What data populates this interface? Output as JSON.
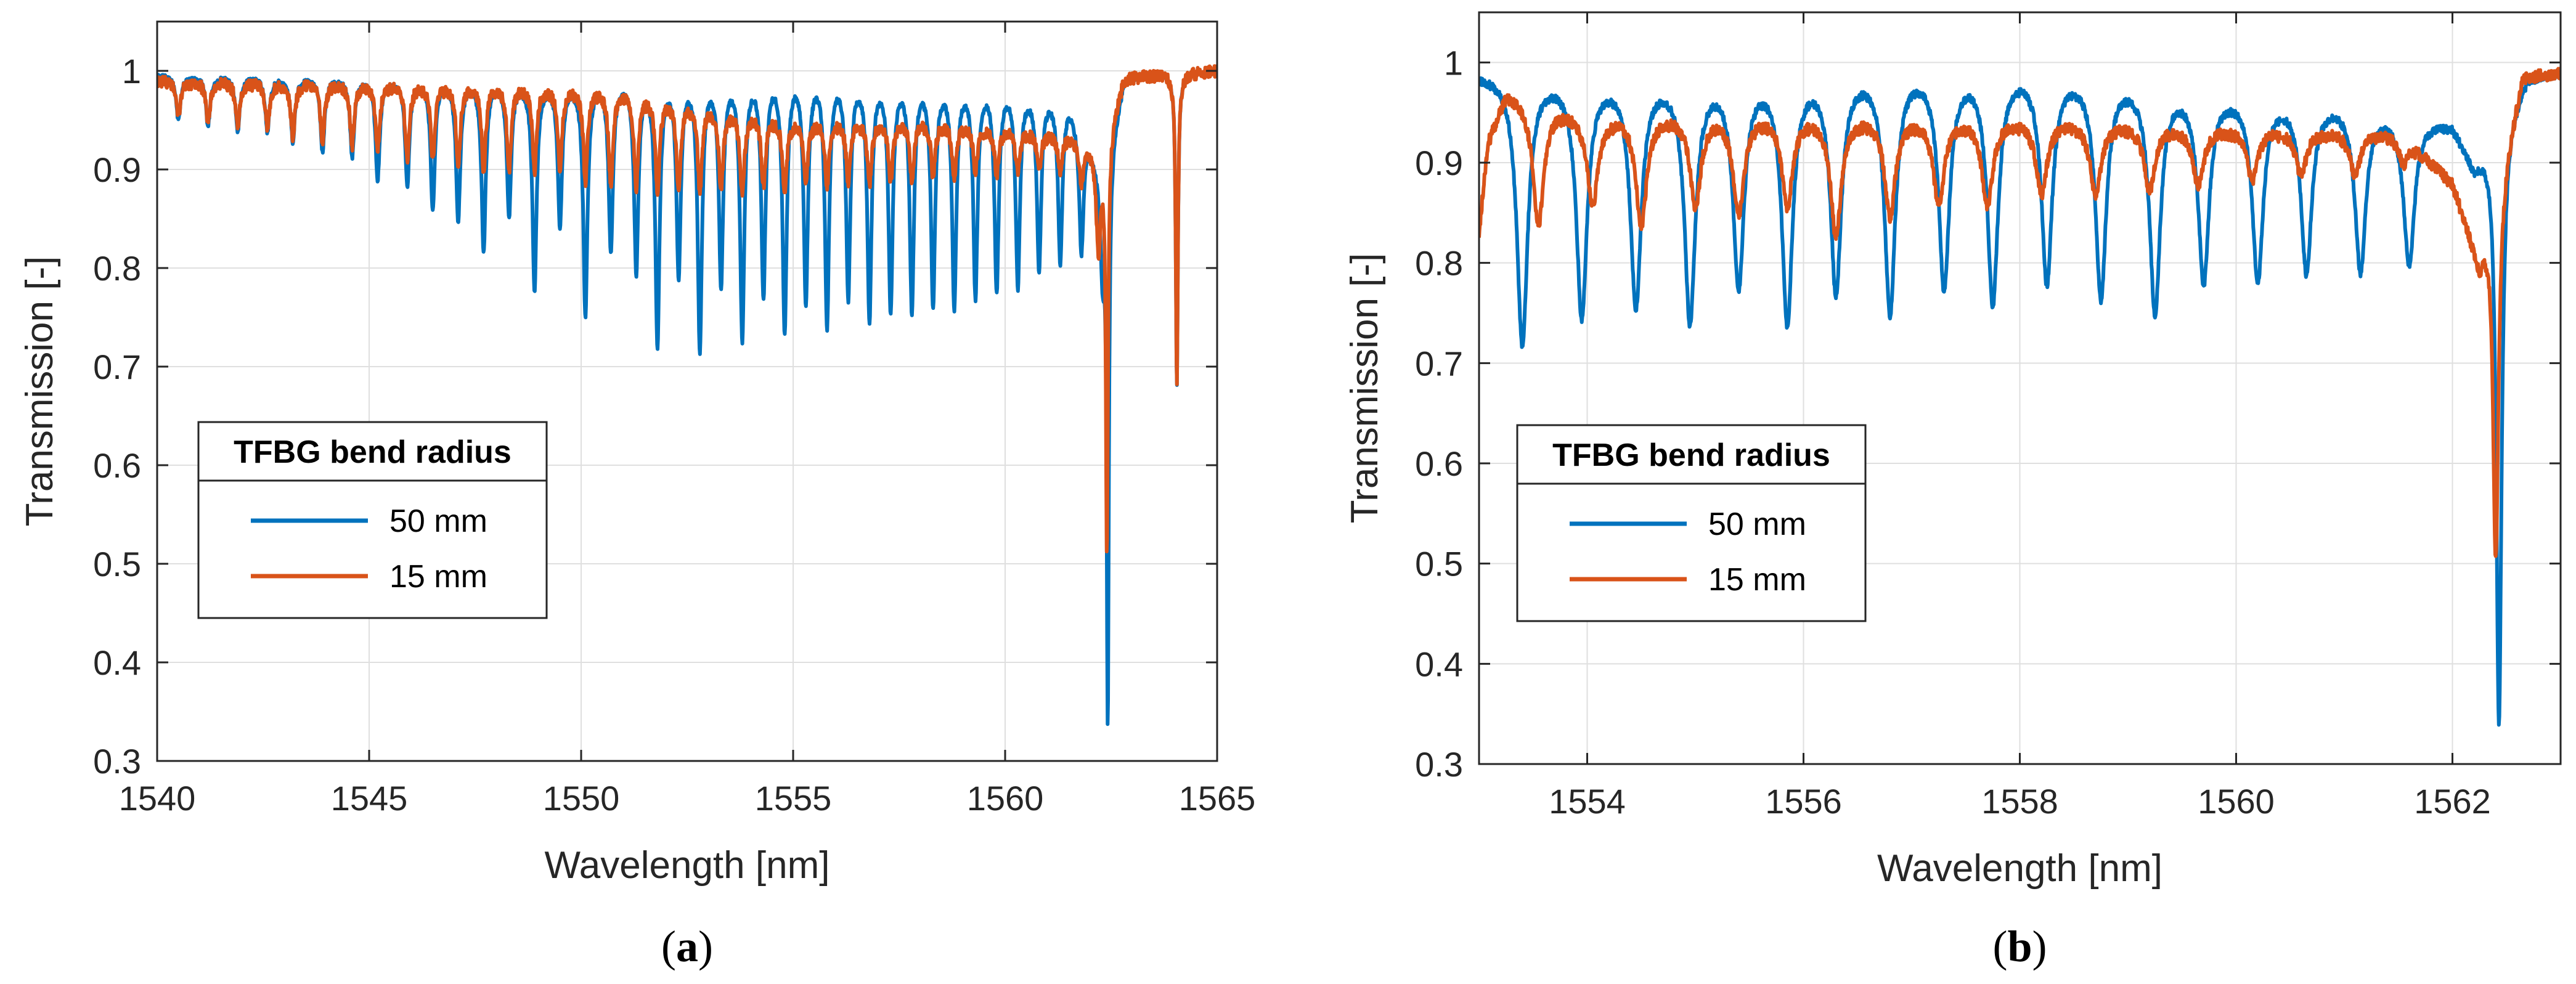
{
  "chart_data": [
    {
      "panel": "a",
      "caption": {
        "open": "(",
        "letter": "a",
        "close": ")"
      },
      "type": "line",
      "xlabel": "Wavelength [nm]",
      "ylabel": "Transmission [-]",
      "xlim": [
        1540,
        1565
      ],
      "ylim": [
        0.3,
        1.05
      ],
      "xticks": [
        1540,
        1545,
        1550,
        1555,
        1560,
        1565
      ],
      "yticks": [
        0.3,
        0.4,
        0.5,
        0.6,
        0.7,
        0.8,
        0.9,
        1.0
      ],
      "xtick_labels": [
        "1540",
        "1545",
        "1550",
        "1555",
        "1560",
        "1565"
      ],
      "ytick_labels": [
        "0.3",
        "0.4",
        "0.5",
        "0.6",
        "0.7",
        "0.8",
        "0.9",
        "1"
      ],
      "grid": true,
      "legend": {
        "title": "TFBG bend radius",
        "placement": "lower-left",
        "entries": [
          {
            "label": "50 mm",
            "color": "#0072BD"
          },
          {
            "label": "15 mm",
            "color": "#D95319"
          }
        ]
      },
      "series": [
        {
          "name": "50 mm",
          "color": "#0072BD",
          "baseline": [
            [
              1540,
              0.995
            ],
            [
              1550,
              0.99
            ],
            [
              1555,
              1.005
            ],
            [
              1560,
              0.99
            ],
            [
              1561.5,
              0.975
            ],
            [
              1562.3,
              0.9
            ],
            [
              1562.8,
              0.995
            ],
            [
              1565,
              1.0
            ]
          ],
          "baseline_ripple": 0.006,
          "dips": [
            [
              1540.5,
              0.95
            ],
            [
              1541.2,
              0.945
            ],
            [
              1541.9,
              0.94
            ],
            [
              1542.6,
              0.94
            ],
            [
              1543.2,
              0.93
            ],
            [
              1543.9,
              0.92
            ],
            [
              1544.6,
              0.915
            ],
            [
              1545.2,
              0.89
            ],
            [
              1545.9,
              0.885
            ],
            [
              1546.5,
              0.86
            ],
            [
              1547.1,
              0.85
            ],
            [
              1547.7,
              0.82
            ],
            [
              1548.3,
              0.855
            ],
            [
              1548.9,
              0.78
            ],
            [
              1549.5,
              0.845
            ],
            [
              1550.1,
              0.755
            ],
            [
              1550.7,
              0.82
            ],
            [
              1551.3,
              0.8
            ],
            [
              1551.8,
              0.725
            ],
            [
              1552.3,
              0.795
            ],
            [
              1552.8,
              0.72
            ],
            [
              1553.3,
              0.785
            ],
            [
              1553.8,
              0.73
            ],
            [
              1554.3,
              0.775
            ],
            [
              1554.8,
              0.74
            ],
            [
              1555.3,
              0.77
            ],
            [
              1555.8,
              0.745
            ],
            [
              1556.3,
              0.775
            ],
            [
              1556.8,
              0.75
            ],
            [
              1557.3,
              0.76
            ],
            [
              1557.8,
              0.76
            ],
            [
              1558.3,
              0.765
            ],
            [
              1558.8,
              0.765
            ],
            [
              1559.3,
              0.775
            ],
            [
              1559.8,
              0.78
            ],
            [
              1560.3,
              0.785
            ],
            [
              1560.8,
              0.8
            ],
            [
              1561.3,
              0.81
            ],
            [
              1561.8,
              0.82
            ],
            [
              1562.3,
              0.8
            ],
            [
              1562.42,
              0.34
            ],
            [
              1564.05,
              0.68
            ]
          ]
        },
        {
          "name": "15 mm",
          "color": "#D95319",
          "baseline": [
            [
              1540,
              0.99
            ],
            [
              1549,
              0.985
            ],
            [
              1551,
              0.98
            ],
            [
              1555,
              0.95
            ],
            [
              1558,
              0.95
            ],
            [
              1561.5,
              0.935
            ],
            [
              1562.3,
              0.92
            ],
            [
              1562.8,
              0.995
            ],
            [
              1565,
              1.0
            ]
          ],
          "baseline_ripple": 0.012,
          "dips": [
            [
              1540.5,
              0.955
            ],
            [
              1541.2,
              0.95
            ],
            [
              1541.9,
              0.945
            ],
            [
              1542.6,
              0.945
            ],
            [
              1543.2,
              0.935
            ],
            [
              1543.9,
              0.93
            ],
            [
              1544.6,
              0.925
            ],
            [
              1545.2,
              0.92
            ],
            [
              1545.9,
              0.91
            ],
            [
              1546.5,
              0.91
            ],
            [
              1547.1,
              0.905
            ],
            [
              1547.7,
              0.9
            ],
            [
              1548.3,
              0.9
            ],
            [
              1548.9,
              0.9
            ],
            [
              1549.5,
              0.9
            ],
            [
              1550.1,
              0.89
            ],
            [
              1550.7,
              0.885
            ],
            [
              1551.3,
              0.885
            ],
            [
              1551.8,
              0.88
            ],
            [
              1552.3,
              0.88
            ],
            [
              1552.8,
              0.88
            ],
            [
              1553.3,
              0.88
            ],
            [
              1553.8,
              0.875
            ],
            [
              1554.3,
              0.885
            ],
            [
              1554.8,
              0.88
            ],
            [
              1555.3,
              0.89
            ],
            [
              1555.8,
              0.885
            ],
            [
              1556.3,
              0.89
            ],
            [
              1556.8,
              0.885
            ],
            [
              1557.3,
              0.89
            ],
            [
              1557.8,
              0.89
            ],
            [
              1558.3,
              0.895
            ],
            [
              1558.8,
              0.895
            ],
            [
              1559.3,
              0.9
            ],
            [
              1559.8,
              0.895
            ],
            [
              1560.3,
              0.9
            ],
            [
              1560.8,
              0.9
            ],
            [
              1561.3,
              0.9
            ],
            [
              1561.8,
              0.89
            ],
            [
              1562.2,
              0.82
            ],
            [
              1562.4,
              0.51
            ],
            [
              1564.05,
              0.68
            ]
          ]
        }
      ]
    },
    {
      "panel": "b",
      "caption": {
        "open": "(",
        "letter": "b",
        "close": ")"
      },
      "type": "line",
      "xlabel": "Wavelength [nm]",
      "ylabel": "Transmission [-]",
      "xlim": [
        1553,
        1563
      ],
      "ylim": [
        0.3,
        1.05
      ],
      "xticks": [
        1554,
        1556,
        1558,
        1560,
        1562
      ],
      "yticks": [
        0.3,
        0.4,
        0.5,
        0.6,
        0.7,
        0.8,
        0.9,
        1.0
      ],
      "xtick_labels": [
        "1554",
        "1556",
        "1558",
        "1560",
        "1562"
      ],
      "ytick_labels": [
        "0.3",
        "0.4",
        "0.5",
        "0.6",
        "0.7",
        "0.8",
        "0.9",
        "1"
      ],
      "grid": true,
      "legend": {
        "title": "TFBG bend radius",
        "placement": "lower-left",
        "entries": [
          {
            "label": "50 mm",
            "color": "#0072BD"
          },
          {
            "label": "15 mm",
            "color": "#D95319"
          }
        ]
      },
      "series": [
        {
          "name": "50 mm",
          "color": "#0072BD",
          "baseline": [
            [
              1553,
              0.99
            ],
            [
              1555,
              0.99
            ],
            [
              1557,
              1.0
            ],
            [
              1558,
              1.0
            ],
            [
              1559,
              0.99
            ],
            [
              1560,
              0.975
            ],
            [
              1561,
              0.965
            ],
            [
              1562,
              0.94
            ],
            [
              1562.2,
              0.9
            ],
            [
              1562.7,
              0.99
            ],
            [
              1563,
              0.99
            ]
          ],
          "baseline_ripple": 0.008,
          "dips": [
            [
              1553.4,
              0.72
            ],
            [
              1553.95,
              0.75
            ],
            [
              1554.45,
              0.76
            ],
            [
              1554.95,
              0.745
            ],
            [
              1555.4,
              0.78
            ],
            [
              1555.85,
              0.745
            ],
            [
              1556.3,
              0.775
            ],
            [
              1556.8,
              0.755
            ],
            [
              1557.3,
              0.78
            ],
            [
              1557.75,
              0.765
            ],
            [
              1558.25,
              0.785
            ],
            [
              1558.75,
              0.77
            ],
            [
              1559.25,
              0.755
            ],
            [
              1559.7,
              0.785
            ],
            [
              1560.2,
              0.785
            ],
            [
              1560.65,
              0.795
            ],
            [
              1561.15,
              0.795
            ],
            [
              1561.6,
              0.8
            ],
            [
              1562.43,
              0.34
            ]
          ]
        },
        {
          "name": "15 mm",
          "color": "#D95319",
          "baseline": [
            [
              1553,
              0.83
            ],
            [
              1553.08,
              0.92
            ],
            [
              1553.25,
              0.97
            ],
            [
              1554,
              0.95
            ],
            [
              1556,
              0.95
            ],
            [
              1558,
              0.945
            ],
            [
              1560,
              0.935
            ],
            [
              1561.5,
              0.93
            ],
            [
              1562,
              0.88
            ],
            [
              1562.25,
              0.8
            ],
            [
              1562.65,
              0.99
            ],
            [
              1563,
              0.99
            ]
          ],
          "baseline_ripple": 0.012,
          "dips": [
            [
              1553.55,
              0.84
            ],
            [
              1554.05,
              0.86
            ],
            [
              1554.5,
              0.84
            ],
            [
              1555,
              0.86
            ],
            [
              1555.4,
              0.85
            ],
            [
              1555.85,
              0.86
            ],
            [
              1556.3,
              0.83
            ],
            [
              1556.8,
              0.85
            ],
            [
              1557.25,
              0.86
            ],
            [
              1557.7,
              0.86
            ],
            [
              1558.2,
              0.87
            ],
            [
              1558.7,
              0.87
            ],
            [
              1559.2,
              0.875
            ],
            [
              1559.65,
              0.88
            ],
            [
              1560.15,
              0.885
            ],
            [
              1560.6,
              0.89
            ],
            [
              1561.1,
              0.89
            ],
            [
              1561.55,
              0.9
            ],
            [
              1562.4,
              0.505
            ]
          ]
        }
      ]
    }
  ]
}
